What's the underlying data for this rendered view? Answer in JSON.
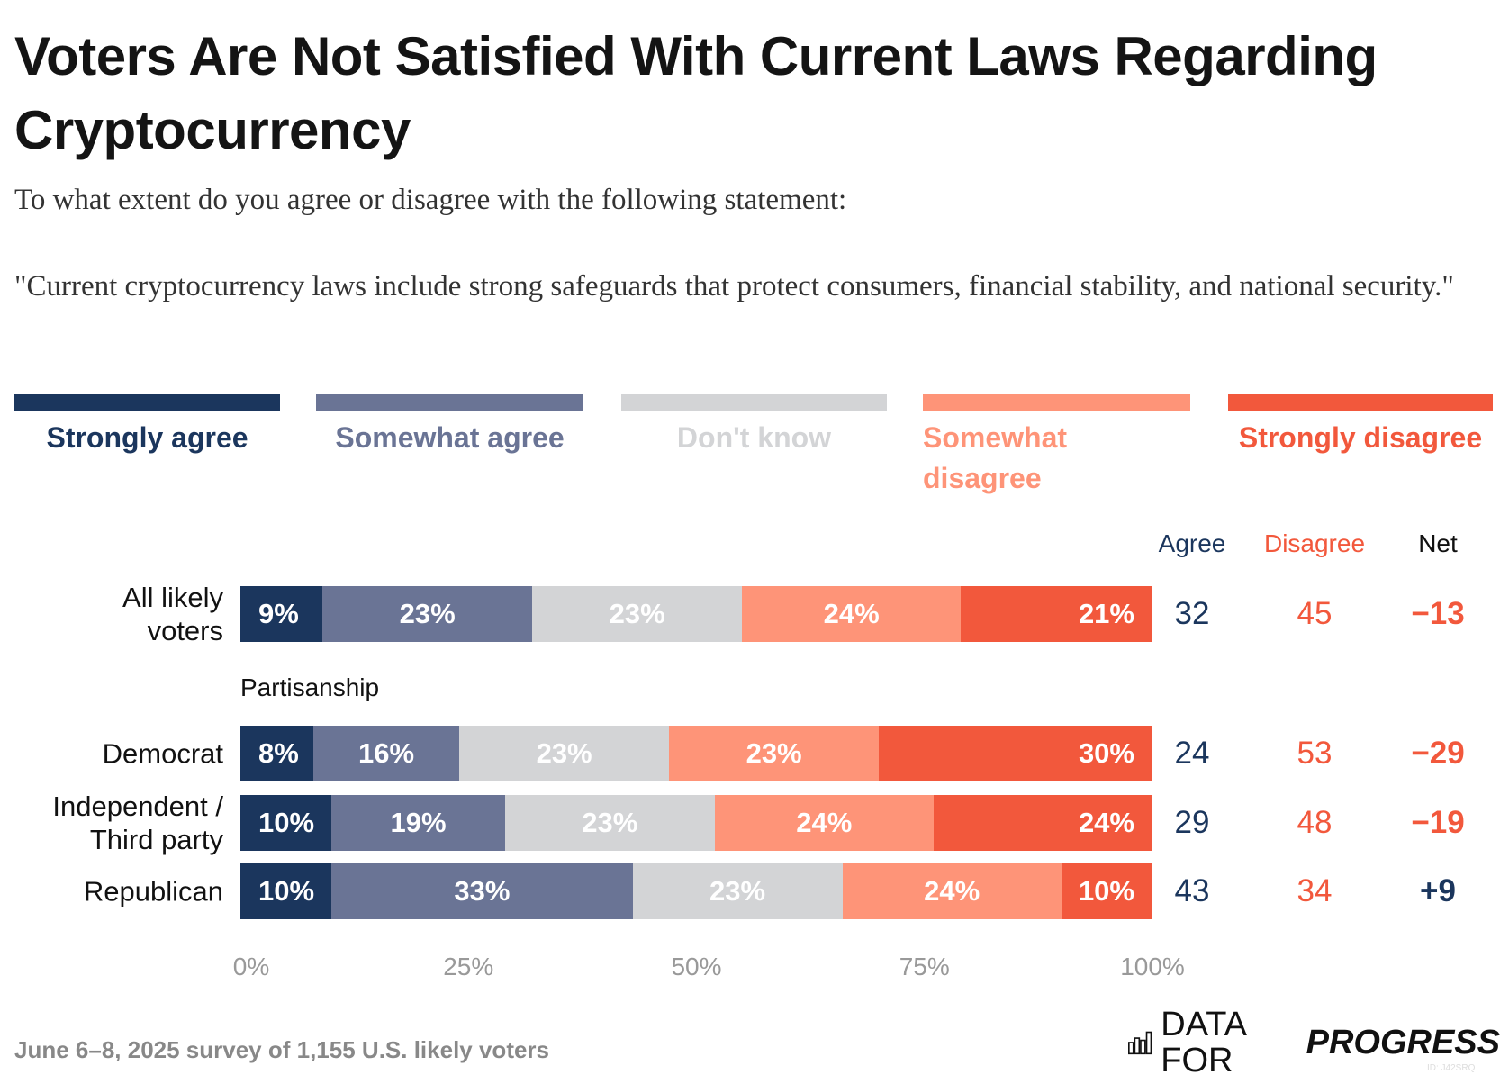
{
  "title": "Voters Are Not Satisfied With Current Laws Regarding Cryptocurrency",
  "subtitle": "To what extent do you agree or disagree with the following statement:",
  "statement": "\"Current cryptocurrency laws include strong safeguards that protect consumers, financial stability, and national security.\"",
  "footer": "June 6–8, 2025 survey of 1,155 U.S. likely voters",
  "logo": {
    "light": "DATA FOR",
    "bold": "PROGRESS",
    "icon": "bar-chart-icon",
    "id_text": "ID: J42SRQ"
  },
  "columns": {
    "agree": "Agree",
    "disagree": "Disagree",
    "net": "Net"
  },
  "section_label": "Partisanship",
  "chart_data": {
    "type": "bar",
    "stacked": true,
    "orientation": "horizontal",
    "xlim": [
      0,
      100
    ],
    "xticks": [
      "0%",
      "25%",
      "50%",
      "75%",
      "100%"
    ],
    "legend_placement": "top",
    "series": [
      {
        "name": "Strongly agree",
        "color": "#1b365d",
        "label_color": "#1b365d"
      },
      {
        "name": "Somewhat agree",
        "color": "#6a7495",
        "label_color": "#6a7495"
      },
      {
        "name": "Don't know",
        "color": "#d3d4d6",
        "label_color": "#d3d4d6"
      },
      {
        "name": "Somewhat disagree",
        "color": "#fe9478",
        "label_color": "#fe9478"
      },
      {
        "name": "Strongly disagree",
        "color": "#f2583c",
        "label_color": "#f2583c"
      }
    ],
    "rows": [
      {
        "label": "All likely voters",
        "values": [
          9,
          23,
          23,
          24,
          21
        ],
        "agree": "32",
        "disagree": "45",
        "net": "−13",
        "net_color": "#f2583c"
      },
      {
        "label": "Democrat",
        "values": [
          8,
          16,
          23,
          23,
          30
        ],
        "agree": "24",
        "disagree": "53",
        "net": "−29",
        "net_color": "#f2583c"
      },
      {
        "label": "Independent / Third party",
        "values": [
          10,
          19,
          23,
          24,
          24
        ],
        "agree": "29",
        "disagree": "48",
        "net": "−19",
        "net_color": "#f2583c"
      },
      {
        "label": "Republican",
        "values": [
          10,
          33,
          23,
          24,
          10
        ],
        "agree": "43",
        "disagree": "34",
        "net": "+9",
        "net_color": "#1b365d"
      }
    ],
    "colors": {
      "agree": "#1b365d",
      "disagree": "#f2583c",
      "net": "#111111"
    }
  }
}
